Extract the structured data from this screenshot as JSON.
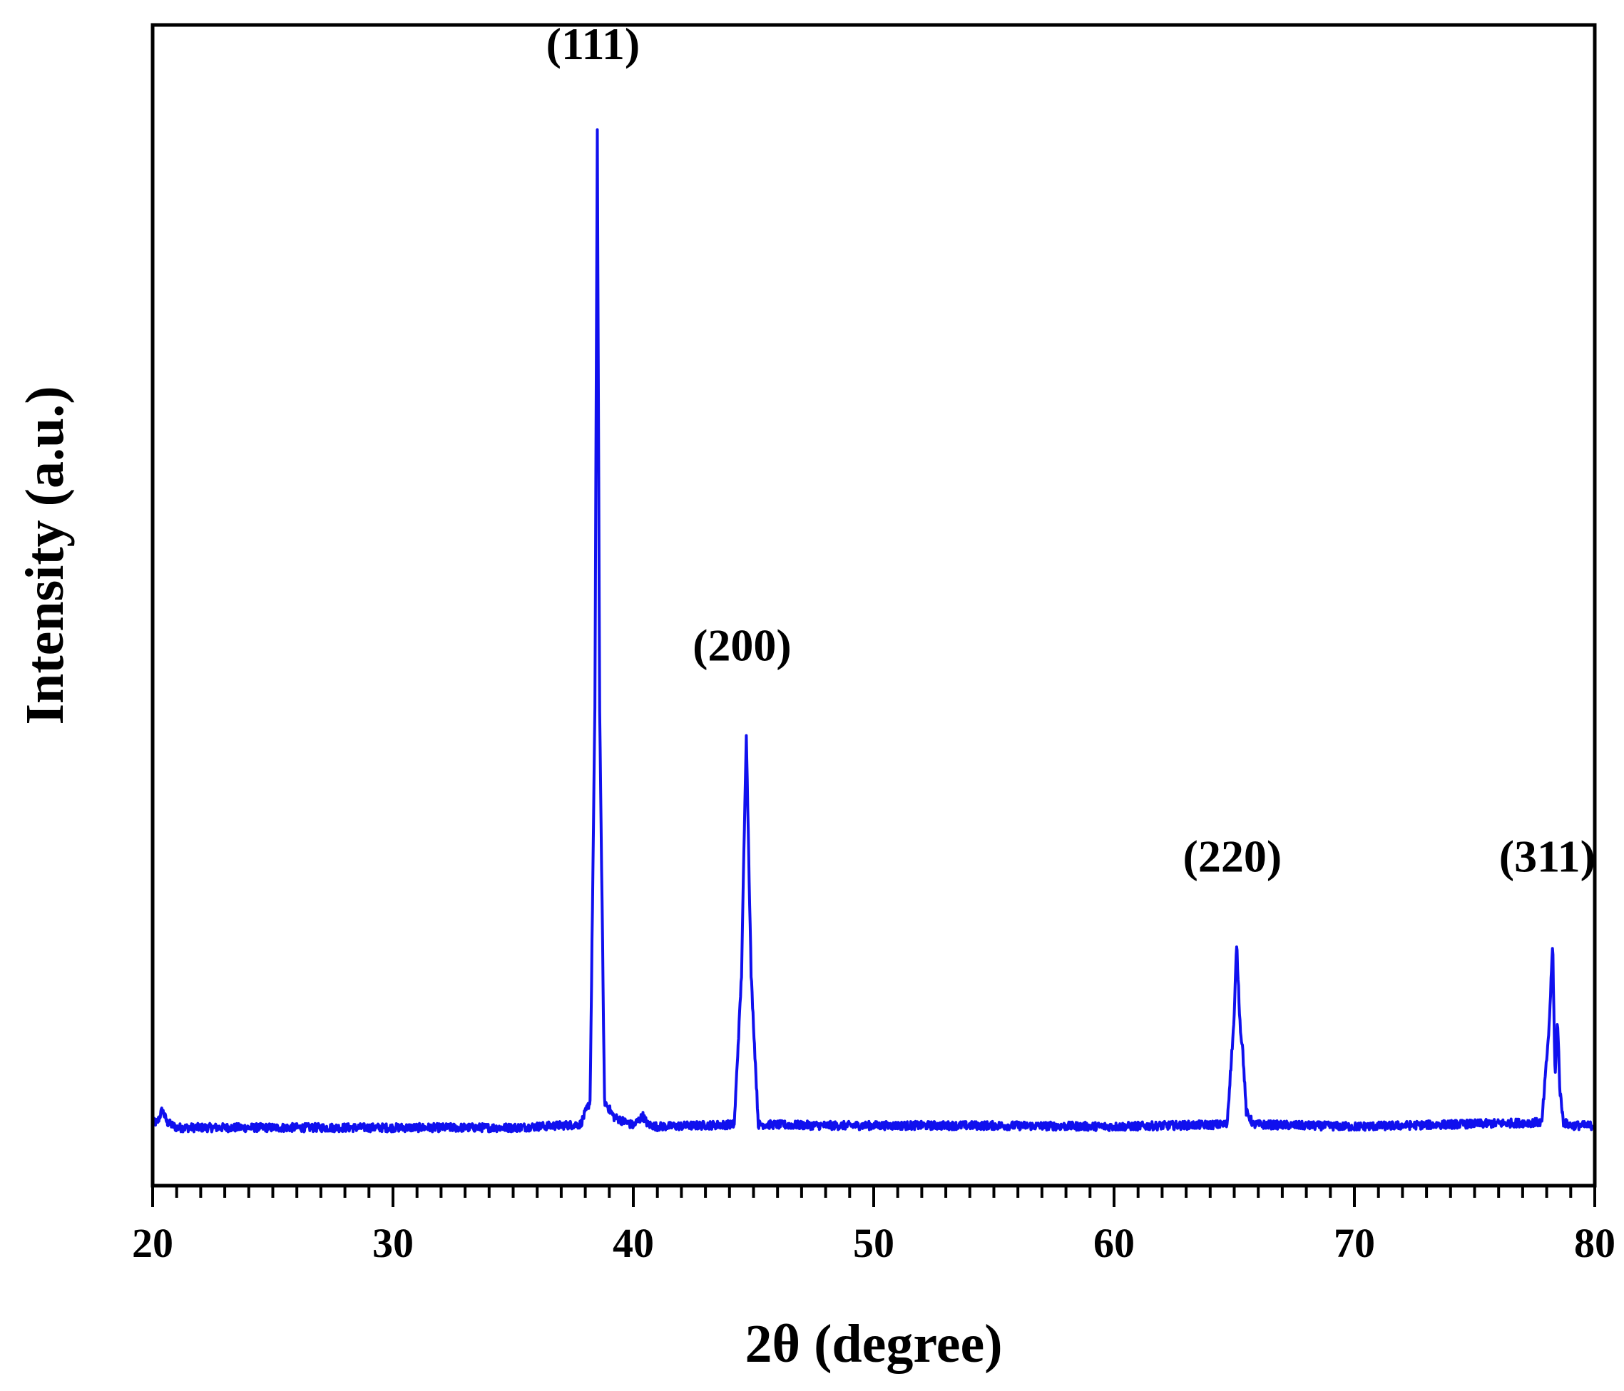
{
  "chart_data": {
    "type": "line",
    "title": "",
    "xlabel": "2θ (degree)",
    "ylabel": "Intensity (a.u.)",
    "xlim": [
      20,
      80
    ],
    "ylim": [
      0,
      1.1
    ],
    "x_ticks": [
      20,
      30,
      40,
      50,
      60,
      70,
      80
    ],
    "x_tick_labels": [
      "20",
      "30",
      "40",
      "50",
      "60",
      "70",
      "80"
    ],
    "x_minor_tick_step": 1,
    "y_ticks_shown": false,
    "grid": false,
    "legend": "none",
    "line_color": "#1010ee",
    "baseline": 0.055,
    "peaks": [
      {
        "label": "(111)",
        "x": 38.5,
        "y": 1.0
      },
      {
        "label": "(200)",
        "x": 44.7,
        "y": 0.43
      },
      {
        "label": "(220)",
        "x": 65.1,
        "y": 0.23
      },
      {
        "label": "(311)",
        "x": 78.2,
        "y": 0.23
      }
    ],
    "series": [
      {
        "x": [
          20,
          20.2,
          20.4,
          20.6,
          21,
          25,
          30,
          35,
          37.8,
          38.2,
          38.4,
          38.5,
          38.6,
          38.8,
          39.2,
          40,
          40.4,
          40.6,
          41,
          44.2,
          44.5,
          44.7,
          44.9,
          45.2,
          48,
          55,
          60,
          64.7,
          65.0,
          65.1,
          65.25,
          65.35,
          65.5,
          65.8,
          70,
          77.8,
          78.1,
          78.25,
          78.35,
          78.45,
          78.55,
          78.7,
          79,
          80
        ],
        "y": [
          0.06,
          0.06,
          0.072,
          0.06,
          0.055,
          0.055,
          0.055,
          0.055,
          0.058,
          0.08,
          0.45,
          1.0,
          0.45,
          0.08,
          0.065,
          0.057,
          0.066,
          0.058,
          0.056,
          0.058,
          0.2,
          0.43,
          0.2,
          0.058,
          0.057,
          0.057,
          0.056,
          0.058,
          0.16,
          0.23,
          0.15,
          0.13,
          0.07,
          0.058,
          0.056,
          0.06,
          0.15,
          0.23,
          0.1,
          0.16,
          0.09,
          0.06,
          0.057,
          0.057
        ]
      }
    ]
  }
}
